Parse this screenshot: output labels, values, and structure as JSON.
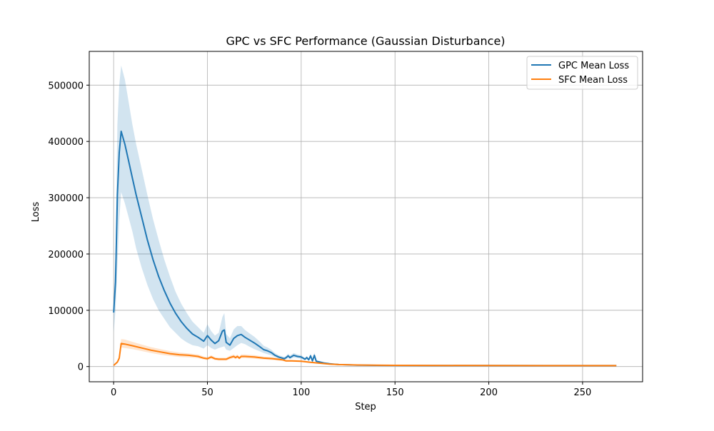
{
  "chart_data": {
    "type": "line",
    "title": "GPC vs SFC Performance (Gaussian Disturbance)",
    "xlabel": "Step",
    "ylabel": "Loss",
    "xlim": [
      -13,
      282
    ],
    "ylim": [
      -27000,
      560000
    ],
    "xticks": [
      0,
      50,
      100,
      150,
      200,
      250
    ],
    "yticks": [
      0,
      100000,
      200000,
      300000,
      400000,
      500000
    ],
    "grid": true,
    "legend_position": "top-right",
    "series": [
      {
        "name": "GPC Mean Loss",
        "color": "#1f77b4",
        "band_color": "#1f77b4",
        "band_opacity": 0.2,
        "x": [
          0,
          1,
          2,
          3,
          4,
          6,
          8,
          10,
          12,
          15,
          18,
          21,
          24,
          27,
          30,
          33,
          36,
          39,
          42,
          45,
          48,
          50,
          52,
          54,
          56,
          58,
          59,
          60,
          62,
          64,
          66,
          68,
          70,
          72,
          75,
          78,
          80,
          82,
          84,
          86,
          88,
          90,
          91,
          92,
          93,
          94,
          96,
          98,
          100,
          102,
          103,
          104,
          105,
          106,
          107,
          108,
          110,
          112,
          115,
          118,
          120,
          125,
          130,
          140,
          150,
          170,
          200,
          230,
          260,
          268
        ],
        "y": [
          96000,
          150000,
          305000,
          380000,
          418000,
          395000,
          365000,
          335000,
          305000,
          265000,
          225000,
          190000,
          160000,
          135000,
          113000,
          95000,
          80000,
          68000,
          58000,
          52000,
          45000,
          55000,
          47000,
          41000,
          46000,
          63000,
          65000,
          43000,
          38000,
          50000,
          55000,
          57000,
          52000,
          48000,
          42000,
          35000,
          30000,
          28000,
          25000,
          20000,
          17000,
          15000,
          14000,
          16000,
          19000,
          16000,
          20000,
          18000,
          17000,
          13000,
          16000,
          12000,
          19000,
          10000,
          20000,
          9500,
          8000,
          6500,
          5000,
          4000,
          3500,
          3000,
          2500,
          2200,
          2000,
          1900,
          1800,
          1700,
          1700,
          1700
        ],
        "lower": [
          60000,
          100000,
          180000,
          260000,
          310000,
          290000,
          265000,
          240000,
          210000,
          175000,
          145000,
          120000,
          100000,
          85000,
          70000,
          60000,
          50000,
          43000,
          38000,
          36000,
          32000,
          38000,
          33000,
          30000,
          33000,
          35000,
          36000,
          30000,
          28000,
          33000,
          38000,
          42000,
          40000,
          36000,
          31000,
          27000,
          24000,
          22000,
          20000,
          17000,
          14000,
          12000,
          11500,
          13000,
          15000,
          13000,
          16000,
          15000,
          14000,
          11000,
          13000,
          10000,
          15000,
          8500,
          15000,
          8000,
          6800,
          5500,
          4200,
          3300,
          2900,
          2500,
          2100,
          1900,
          1700,
          1600,
          1500,
          1400,
          1400,
          1400
        ],
        "upper": [
          130000,
          200000,
          430000,
          500000,
          535000,
          510000,
          470000,
          430000,
          395000,
          350000,
          305000,
          262000,
          225000,
          190000,
          160000,
          133000,
          112000,
          95000,
          80000,
          70000,
          60000,
          75000,
          63000,
          55000,
          60000,
          88000,
          95000,
          58000,
          50000,
          66000,
          72000,
          72000,
          65000,
          60000,
          53000,
          44000,
          37000,
          34000,
          30000,
          24000,
          20000,
          18000,
          17000,
          19000,
          23000,
          19500,
          24000,
          21500,
          20000,
          15500,
          19000,
          14500,
          23000,
          12000,
          25000,
          11000,
          9300,
          7500,
          5800,
          4700,
          4100,
          3500,
          2900,
          2500,
          2300,
          2200,
          2100,
          2000,
          2000,
          2000
        ]
      },
      {
        "name": "SFC Mean Loss",
        "color": "#ff7f0e",
        "band_color": "#ff7f0e",
        "band_opacity": 0.2,
        "x": [
          0,
          2,
          3,
          4,
          6,
          10,
          15,
          20,
          25,
          30,
          35,
          40,
          45,
          48,
          50,
          52,
          54,
          56,
          58,
          60,
          62,
          64,
          65,
          66,
          67,
          68,
          70,
          75,
          80,
          85,
          90,
          92,
          95,
          100,
          105,
          110,
          115,
          120,
          130,
          150,
          200,
          268
        ],
        "y": [
          2000,
          8000,
          15000,
          41000,
          40000,
          37000,
          33000,
          29000,
          26000,
          23000,
          21000,
          20000,
          18000,
          15000,
          14000,
          17000,
          14000,
          13000,
          13000,
          13000,
          16000,
          18000,
          16000,
          18000,
          15000,
          18000,
          18000,
          17000,
          15000,
          14000,
          12000,
          10000,
          10000,
          9500,
          7500,
          6000,
          4500,
          3500,
          2800,
          2200,
          1800,
          1700
        ],
        "lower": [
          1500,
          6000,
          12000,
          34000,
          33000,
          31000,
          27500,
          24000,
          21000,
          19000,
          17000,
          16500,
          14800,
          12500,
          11500,
          14000,
          11500,
          10500,
          10500,
          10500,
          13000,
          15000,
          13000,
          15000,
          12500,
          15000,
          15000,
          14000,
          12500,
          11500,
          10000,
          8500,
          8500,
          8000,
          6300,
          5000,
          3800,
          3000,
          2400,
          1900,
          1500,
          1400
        ],
        "upper": [
          2600,
          10500,
          18500,
          49000,
          48000,
          44000,
          39000,
          34500,
          31000,
          27500,
          25000,
          23500,
          21500,
          18000,
          16800,
          20000,
          16800,
          15800,
          15800,
          15800,
          19200,
          21500,
          19200,
          21500,
          17800,
          21500,
          21500,
          20200,
          17800,
          16800,
          14200,
          11800,
          11800,
          11200,
          8900,
          7100,
          5300,
          4100,
          3300,
          2600,
          2100,
          2000
        ]
      }
    ]
  }
}
